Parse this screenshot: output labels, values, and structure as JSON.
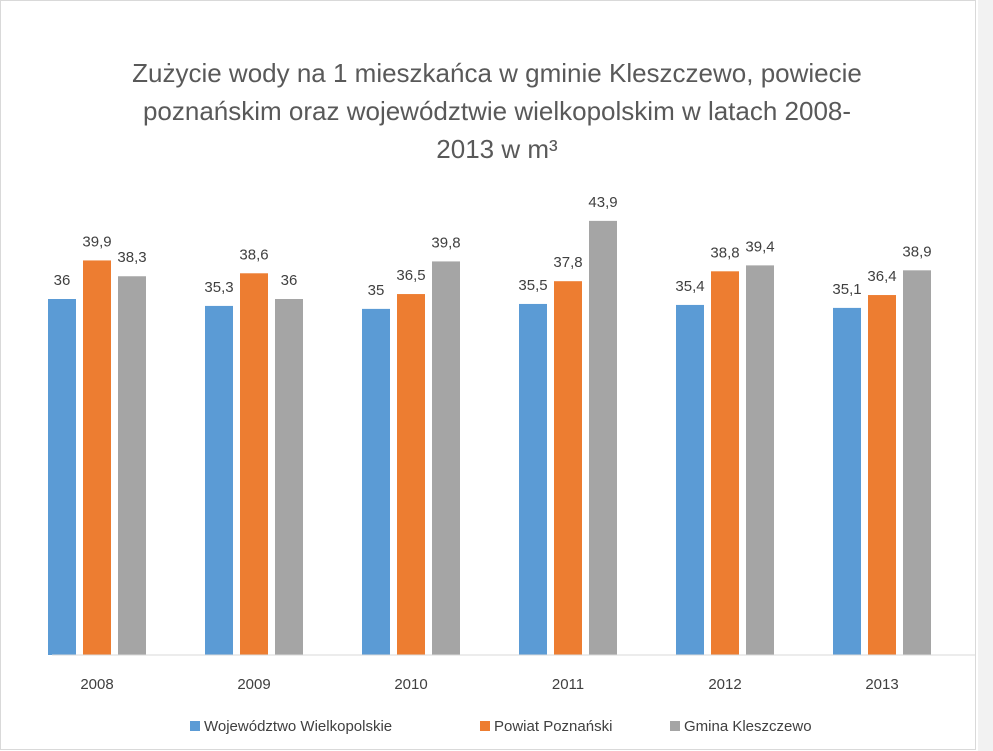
{
  "chart_data": {
    "type": "bar",
    "title": [
      "Zużycie wody na 1 mieszkańca w gminie Kleszczewo, powiecie",
      "poznańskim oraz województwie wielkopolskim w latach 2008-",
      "2013 w m³"
    ],
    "categories": [
      "2008",
      "2009",
      "2010",
      "2011",
      "2012",
      "2013"
    ],
    "series": [
      {
        "name": "Województwo Wielkopolskie",
        "color": "#5b9bd5",
        "values": [
          36,
          35.3,
          35,
          35.5,
          35.4,
          35.1
        ],
        "value_labels": [
          "36",
          "35,3",
          "35",
          "35,5",
          "35,4",
          "35,1"
        ]
      },
      {
        "name": "Powiat Poznański",
        "color": "#ed7d31",
        "values": [
          39.9,
          38.6,
          36.5,
          37.8,
          38.8,
          36.4
        ],
        "value_labels": [
          "39,9",
          "38,6",
          "36,5",
          "37,8",
          "38,8",
          "36,4"
        ]
      },
      {
        "name": "Gmina Kleszczewo",
        "color": "#a5a5a5",
        "values": [
          38.3,
          36,
          39.8,
          43.9,
          39.4,
          38.9
        ],
        "value_labels": [
          "38,3",
          "36",
          "39,8",
          "43,9",
          "39,4",
          "38,9"
        ]
      }
    ],
    "ylim": [
      0,
      45
    ],
    "legend": "bottom"
  }
}
